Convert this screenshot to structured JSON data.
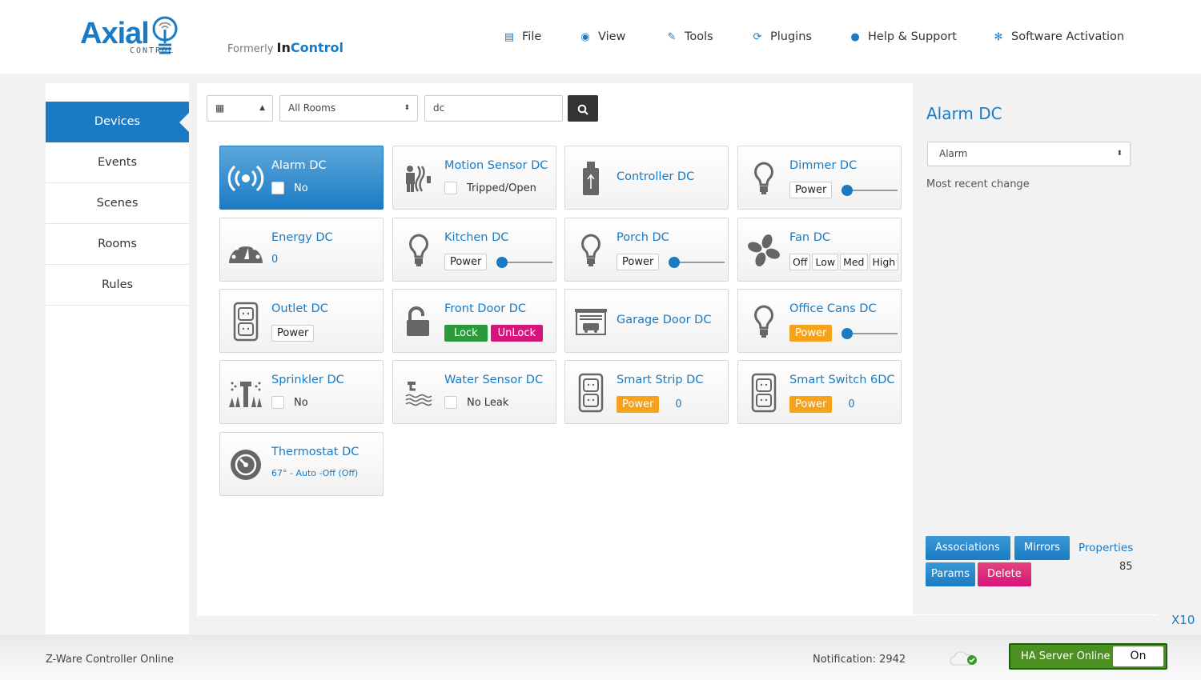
{
  "header": {
    "logo": "Axial",
    "logo_sub": "CONTROL",
    "formerly": "Formerly",
    "formerly_brand_a": "In",
    "formerly_brand_b": "Control",
    "menu": [
      {
        "label": "File",
        "icon": "file-icon"
      },
      {
        "label": "View",
        "icon": "eye-icon"
      },
      {
        "label": "Tools",
        "icon": "wrench-icon"
      },
      {
        "label": "Plugins",
        "icon": "refresh-icon"
      },
      {
        "label": "Help & Support",
        "icon": "chat-icon"
      },
      {
        "label": "Software Activation",
        "icon": "gears-icon"
      }
    ]
  },
  "sidebar": {
    "items": [
      {
        "label": "Devices",
        "active": true
      },
      {
        "label": "Events"
      },
      {
        "label": "Scenes"
      },
      {
        "label": "Rooms"
      },
      {
        "label": "Rules"
      }
    ]
  },
  "toolbar": {
    "view_select": "▦",
    "room_select": "All Rooms",
    "search_value": "dc"
  },
  "devices": [
    {
      "name": "Alarm DC",
      "type": "check",
      "icon": "alarm-icon",
      "label": "No",
      "selected": true
    },
    {
      "name": "Motion Sensor DC",
      "type": "check",
      "icon": "motion-sensor-icon",
      "label": "Tripped/Open"
    },
    {
      "name": "Controller DC",
      "type": "plain",
      "icon": "usb-controller-icon"
    },
    {
      "name": "Dimmer DC",
      "type": "dimmer",
      "icon": "bulb-icon",
      "power": "Power",
      "level": 0
    },
    {
      "name": "Energy DC",
      "type": "value",
      "icon": "gauge-icon",
      "value": "0"
    },
    {
      "name": "Kitchen DC",
      "type": "dimmer",
      "icon": "bulb-icon",
      "power": "Power",
      "level": 0
    },
    {
      "name": "Porch DC",
      "type": "dimmer",
      "icon": "bulb-icon",
      "power": "Power",
      "level": 0
    },
    {
      "name": "Fan DC",
      "type": "fan",
      "icon": "fan-icon",
      "options": [
        "Off",
        "Low",
        "Med",
        "High"
      ]
    },
    {
      "name": "Outlet DC",
      "type": "switch",
      "icon": "outlet-icon",
      "power": "Power"
    },
    {
      "name": "Front Door DC",
      "type": "lock",
      "icon": "unlock-icon",
      "lock": "Lock",
      "unlock": "UnLock"
    },
    {
      "name": "Garage Door DC",
      "type": "plain",
      "icon": "garage-icon"
    },
    {
      "name": "Office Cans DC",
      "type": "dimmer",
      "icon": "bulb-icon",
      "power": "Power",
      "on": true,
      "level": 0
    },
    {
      "name": "Sprinkler DC",
      "type": "check",
      "icon": "sprinkler-icon",
      "label": "No"
    },
    {
      "name": "Water Sensor DC",
      "type": "check",
      "icon": "water-sensor-icon",
      "label": "No Leak"
    },
    {
      "name": "Smart Strip DC",
      "type": "powerval",
      "icon": "outlet-icon",
      "power": "Power",
      "value": "0",
      "on": true
    },
    {
      "name": "Smart Switch 6DC",
      "type": "powerval",
      "icon": "outlet-icon",
      "power": "Power",
      "value": "0",
      "on": true
    },
    {
      "name": "Thermostat DC",
      "type": "thermo",
      "icon": "thermostat-icon",
      "status": "67° - Auto -Off (Off)"
    }
  ],
  "detail": {
    "title": "Alarm DC",
    "type_select": "Alarm",
    "recent": "Most recent change",
    "buttons": {
      "associations": "Associations",
      "mirrors": "Mirrors",
      "params": "Params",
      "delete": "Delete"
    },
    "properties": "Properties",
    "properties_value": "85",
    "x10": "X10"
  },
  "footer": {
    "zware": "Z-Ware Controller Online",
    "notification": "Notification: 2942",
    "ha_status": "HA Server Online",
    "ha_toggle": "On"
  },
  "colors": {
    "accent": "#1a7bc4",
    "danger": "#d6157a",
    "warning": "#f7a21b",
    "success": "#2a9a3a"
  }
}
